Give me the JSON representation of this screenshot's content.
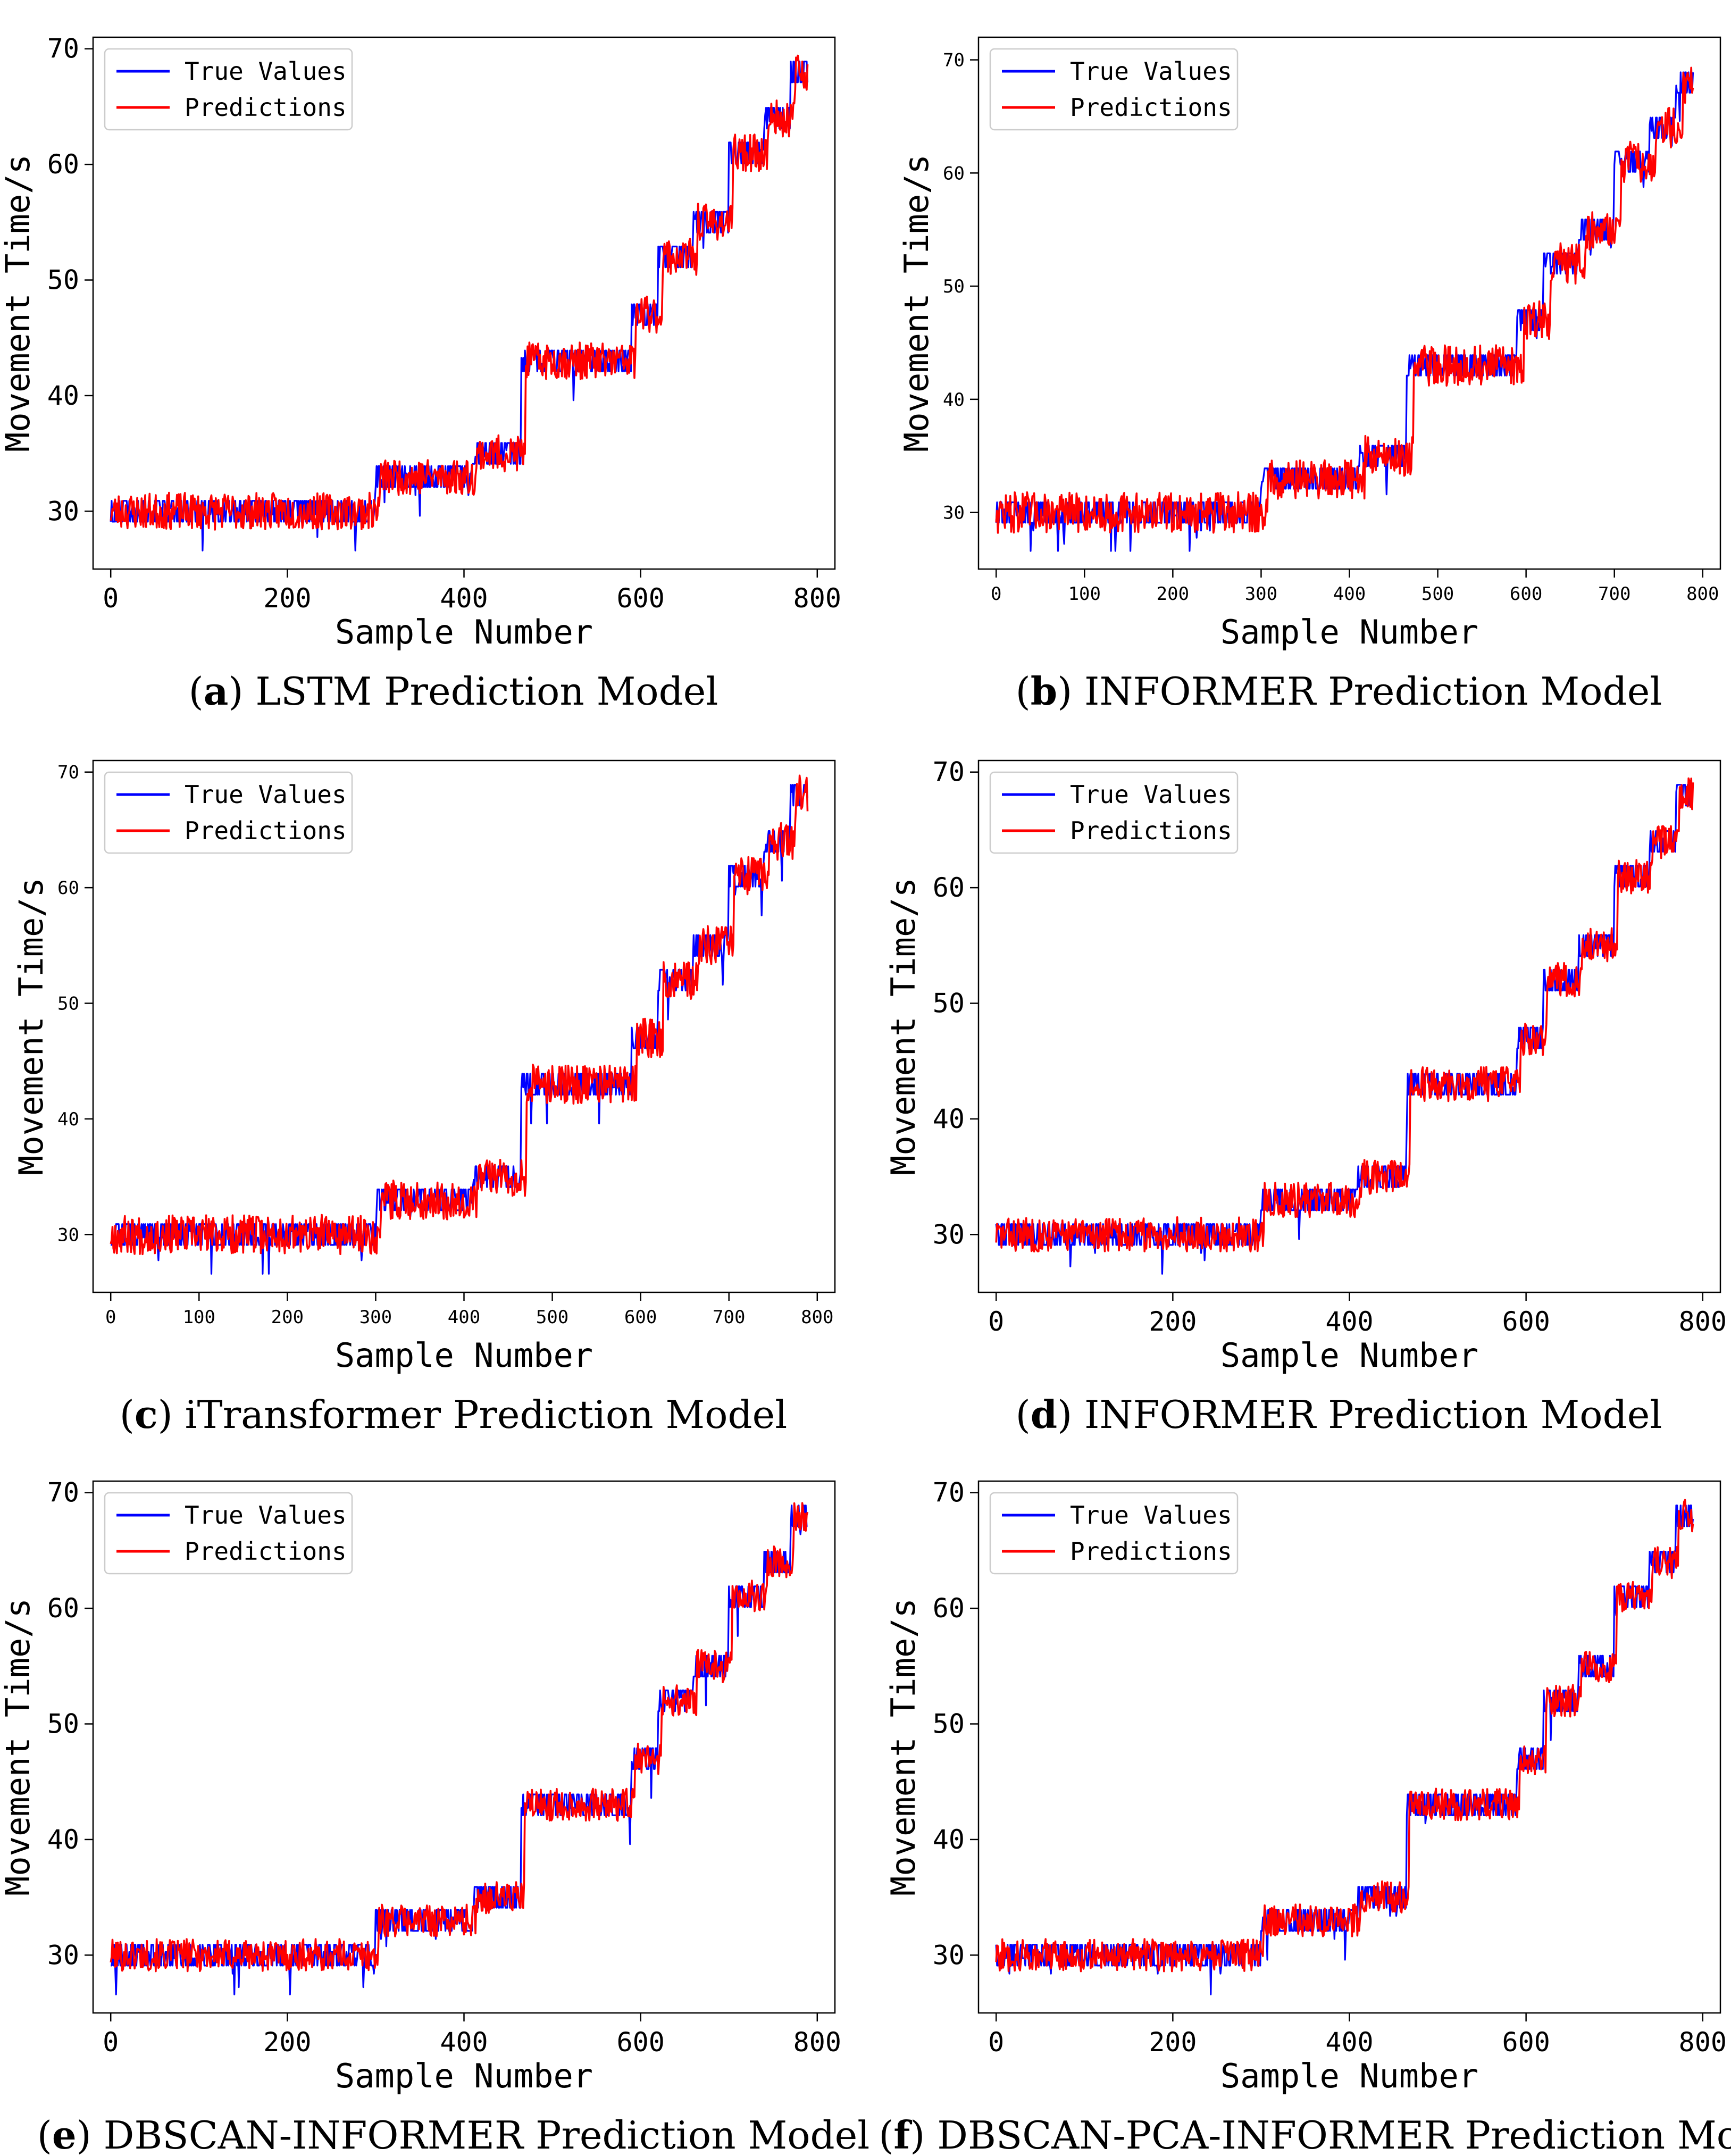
{
  "chart_data": [
    {
      "panel_letter": "a",
      "caption": "LSTM Prediction Model",
      "type": "line",
      "xlabel": "Sample Number",
      "ylabel": "Movement Time/s",
      "xlim": [
        -20,
        820
      ],
      "ylim": [
        25,
        71
      ],
      "x_ticks": [
        0,
        200,
        400,
        600,
        800
      ],
      "y_ticks": [
        30,
        40,
        50,
        60,
        70
      ],
      "legend": {
        "position": "upper-left",
        "entries": [
          "True Values",
          "Predictions"
        ]
      },
      "series": [
        {
          "name": "True Values",
          "color": "#0000ff",
          "seed": 11,
          "lag": 0,
          "noise": 0.9
        },
        {
          "name": "Predictions",
          "color": "#ff0000",
          "seed": 23,
          "lag": 5,
          "noise": 1.6
        }
      ]
    },
    {
      "panel_letter": "b",
      "caption": "INFORMER Prediction Model",
      "type": "line",
      "xlabel": "Sample Number",
      "ylabel": "Movement Time/s",
      "xlim": [
        -20,
        820
      ],
      "ylim": [
        25,
        72
      ],
      "x_ticks": [
        0,
        100,
        200,
        300,
        400,
        500,
        600,
        700,
        800
      ],
      "y_ticks": [
        30,
        40,
        50,
        60,
        70
      ],
      "legend": {
        "position": "upper-left",
        "entries": [
          "True Values",
          "Predictions"
        ]
      },
      "series": [
        {
          "name": "True Values",
          "color": "#0000ff",
          "seed": 31,
          "lag": 0,
          "noise": 0.9
        },
        {
          "name": "Predictions",
          "color": "#ff0000",
          "seed": 47,
          "lag": 8,
          "noise": 1.8
        }
      ]
    },
    {
      "panel_letter": "c",
      "caption": "iTransformer Prediction Model",
      "type": "line",
      "xlabel": "Sample Number",
      "ylabel": "Movement Time/s",
      "xlim": [
        -20,
        820
      ],
      "ylim": [
        25,
        71
      ],
      "x_ticks": [
        0,
        100,
        200,
        300,
        400,
        500,
        600,
        700,
        800
      ],
      "y_ticks": [
        30,
        40,
        50,
        60,
        70
      ],
      "legend": {
        "position": "upper-left",
        "entries": [
          "True Values",
          "Predictions"
        ]
      },
      "series": [
        {
          "name": "True Values",
          "color": "#0000ff",
          "seed": 53,
          "lag": 0,
          "noise": 0.9
        },
        {
          "name": "Predictions",
          "color": "#ff0000",
          "seed": 67,
          "lag": 6,
          "noise": 1.7
        }
      ]
    },
    {
      "panel_letter": "d",
      "caption": "INFORMER Prediction Model",
      "type": "line",
      "xlabel": "Sample Number",
      "ylabel": "Movement Time/s",
      "xlim": [
        -20,
        820
      ],
      "ylim": [
        25,
        71
      ],
      "x_ticks": [
        0,
        200,
        400,
        600,
        800
      ],
      "y_ticks": [
        30,
        40,
        50,
        60,
        70
      ],
      "legend": {
        "position": "upper-left",
        "entries": [
          "True Values",
          "Predictions"
        ]
      },
      "series": [
        {
          "name": "True Values",
          "color": "#0000ff",
          "seed": 71,
          "lag": 0,
          "noise": 0.9
        },
        {
          "name": "Predictions",
          "color": "#ff0000",
          "seed": 83,
          "lag": 4,
          "noise": 1.5
        }
      ]
    },
    {
      "panel_letter": "e",
      "caption": "DBSCAN-INFORMER Prediction Model",
      "type": "line",
      "xlabel": "Sample Number",
      "ylabel": "Movement Time/s",
      "xlim": [
        -20,
        820
      ],
      "ylim": [
        25,
        71
      ],
      "x_ticks": [
        0,
        200,
        400,
        600,
        800
      ],
      "y_ticks": [
        30,
        40,
        50,
        60,
        70
      ],
      "legend": {
        "position": "upper-left",
        "entries": [
          "True Values",
          "Predictions"
        ]
      },
      "series": [
        {
          "name": "True Values",
          "color": "#0000ff",
          "seed": 97,
          "lag": 0,
          "noise": 0.9
        },
        {
          "name": "Predictions",
          "color": "#ff0000",
          "seed": 101,
          "lag": 4,
          "noise": 1.4
        }
      ]
    },
    {
      "panel_letter": "f",
      "caption": "DBSCAN-PCA-INFORMER Prediction Model",
      "type": "line",
      "xlabel": "Sample Number",
      "ylabel": "Movement Time/s",
      "xlim": [
        -20,
        820
      ],
      "ylim": [
        25,
        71
      ],
      "x_ticks": [
        0,
        200,
        400,
        600,
        800
      ],
      "y_ticks": [
        30,
        40,
        50,
        60,
        70
      ],
      "legend": {
        "position": "upper-left",
        "entries": [
          "True Values",
          "Predictions"
        ]
      },
      "series": [
        {
          "name": "True Values",
          "color": "#0000ff",
          "seed": 113,
          "lag": 0,
          "noise": 0.9
        },
        {
          "name": "Predictions",
          "color": "#ff0000",
          "seed": 127,
          "lag": 3,
          "noise": 1.4
        }
      ]
    }
  ],
  "true_value_levels": [
    {
      "from": 0,
      "to": 300,
      "value": 30
    },
    {
      "from": 300,
      "to": 410,
      "value": 33
    },
    {
      "from": 410,
      "to": 465,
      "value": 35
    },
    {
      "from": 465,
      "to": 590,
      "value": 43
    },
    {
      "from": 590,
      "to": 620,
      "value": 47
    },
    {
      "from": 620,
      "to": 660,
      "value": 52
    },
    {
      "from": 660,
      "to": 700,
      "value": 55
    },
    {
      "from": 700,
      "to": 740,
      "value": 61
    },
    {
      "from": 740,
      "to": 770,
      "value": 64
    },
    {
      "from": 770,
      "to": 790,
      "value": 68
    }
  ]
}
